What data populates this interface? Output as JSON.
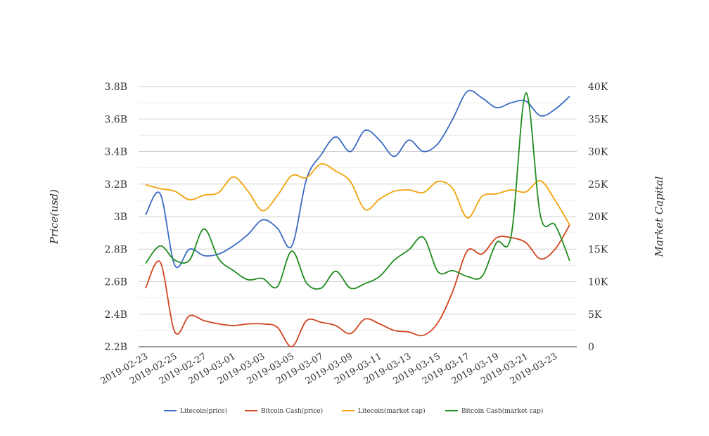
{
  "chart_data": {
    "type": "line",
    "x": [
      "2019-02-23",
      "2019-02-24",
      "2019-02-25",
      "2019-02-26",
      "2019-02-27",
      "2019-02-28",
      "2019-03-01",
      "2019-03-02",
      "2019-03-03",
      "2019-03-04",
      "2019-03-05",
      "2019-03-06",
      "2019-03-07",
      "2019-03-08",
      "2019-03-09",
      "2019-03-10",
      "2019-03-11",
      "2019-03-12",
      "2019-03-13",
      "2019-03-14",
      "2019-03-15",
      "2019-03-16",
      "2019-03-17",
      "2019-03-18",
      "2019-03-19",
      "2019-03-20",
      "2019-03-21",
      "2019-03-22",
      "2019-03-23",
      "2019-03-24"
    ],
    "xtick_labels": [
      "2019-02-23",
      "2019-02-25",
      "2019-02-27",
      "2019-03-01",
      "2019-03-03",
      "2019-03-05",
      "2019-03-07",
      "2019-03-09",
      "2019-03-11",
      "2019-03-13",
      "2019-03-15",
      "2019-03-17",
      "2019-03-19",
      "2019-03-21",
      "2019-03-23"
    ],
    "ylabel": "Price(usd)",
    "y2label": "Market Capital",
    "ylim": [
      2.2,
      3.8
    ],
    "y2lim": [
      0,
      40
    ],
    "ytick_labels": [
      "2.2B",
      "2.4B",
      "2.6B",
      "2.8B",
      "3B",
      "3.2B",
      "3.4B",
      "3.6B",
      "3.8B"
    ],
    "y2tick_labels": [
      "0",
      "5K",
      "10K",
      "15K",
      "20K",
      "25K",
      "30K",
      "35K",
      "40K"
    ],
    "grid": true,
    "legend": "bottom",
    "series": [
      {
        "name": "Litecoin(price)",
        "axis": "left",
        "color": "#3a6bc4",
        "values": [
          3.01,
          3.14,
          2.7,
          2.8,
          2.76,
          2.77,
          2.82,
          2.89,
          2.98,
          2.93,
          2.82,
          3.23,
          3.38,
          3.49,
          3.4,
          3.53,
          3.47,
          3.37,
          3.47,
          3.4,
          3.45,
          3.6,
          3.77,
          3.73,
          3.67,
          3.7,
          3.71,
          3.62,
          3.66,
          3.74
        ]
      },
      {
        "name": "Bitcoin Cash(price)",
        "axis": "left",
        "color": "#d2451e",
        "values": [
          2.56,
          2.72,
          2.29,
          2.39,
          2.36,
          2.34,
          2.33,
          2.34,
          2.34,
          2.32,
          2.2,
          2.36,
          2.35,
          2.33,
          2.28,
          2.37,
          2.34,
          2.3,
          2.29,
          2.27,
          2.35,
          2.54,
          2.79,
          2.77,
          2.87,
          2.87,
          2.84,
          2.74,
          2.8,
          2.95
        ]
      },
      {
        "name": "Litecoin(market cap)",
        "axis": "right",
        "color": "#f0a30a",
        "values": [
          24.9,
          24.3,
          23.9,
          22.6,
          23.3,
          23.7,
          26.1,
          23.9,
          20.9,
          23.2,
          26.3,
          26.0,
          28.1,
          27.0,
          25.4,
          21.1,
          22.7,
          23.9,
          24.1,
          23.7,
          25.4,
          24.3,
          19.8,
          23.1,
          23.5,
          24.1,
          23.8,
          25.5,
          22.5,
          18.7
        ]
      },
      {
        "name": "Bitcoin Cash(market cap)",
        "axis": "right",
        "color": "#1f8c1f",
        "values": [
          12.8,
          15.5,
          13.3,
          13.3,
          18.1,
          13.5,
          11.7,
          10.3,
          10.5,
          9.2,
          14.7,
          9.8,
          9.0,
          11.6,
          9.0,
          9.7,
          10.8,
          13.3,
          14.9,
          16.8,
          11.5,
          11.7,
          10.8,
          10.8,
          16.0,
          17.1,
          39.0,
          20.1,
          18.7,
          13.2
        ]
      }
    ]
  }
}
